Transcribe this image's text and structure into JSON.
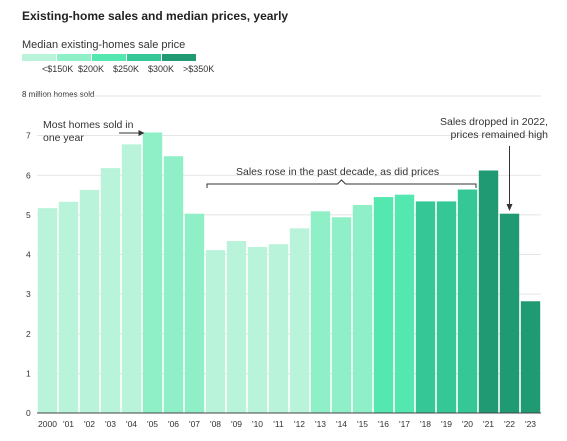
{
  "title": "Existing-home sales and median prices, yearly",
  "legend": {
    "title": "Median existing-homes sale price",
    "items": [
      {
        "label": "<$150K",
        "color": "#b9f3da"
      },
      {
        "label": "$200K",
        "color": "#8ff0c7"
      },
      {
        "label": "$250K",
        "color": "#54e8b0"
      },
      {
        "label": "$300K",
        "color": "#35c795"
      },
      {
        "label": ">$350K",
        "color": "#1f9a72"
      }
    ]
  },
  "y_unit_label": "8 million homes sold",
  "annotations": {
    "peak": "Most homes sold in one year",
    "decade": "Sales rose in the past decade, as did prices",
    "drop": "Sales dropped in 2022, prices remained high"
  },
  "chart_data": {
    "type": "bar",
    "categories": [
      "2000",
      "'01",
      "'02",
      "'03",
      "'04",
      "'05",
      "'06",
      "'07",
      "'08",
      "'09",
      "'10",
      "'11",
      "'12",
      "'13",
      "'14",
      "'15",
      "'16",
      "'17",
      "'18",
      "'19",
      "'20",
      "'21",
      "'22",
      "'23"
    ],
    "values": [
      5.17,
      5.33,
      5.63,
      6.18,
      6.78,
      7.08,
      6.48,
      5.03,
      4.11,
      4.34,
      4.19,
      4.26,
      4.66,
      5.09,
      4.94,
      5.25,
      5.45,
      5.51,
      5.34,
      5.34,
      5.64,
      6.12,
      5.03,
      2.82
    ],
    "price_bin": [
      0,
      0,
      0,
      0,
      0,
      1,
      1,
      1,
      0,
      0,
      0,
      0,
      0,
      1,
      1,
      1,
      2,
      2,
      3,
      3,
      3,
      4,
      4,
      4
    ],
    "yticks": [
      0,
      1,
      2,
      3,
      4,
      5,
      6,
      7
    ],
    "ylim": [
      0,
      8
    ],
    "grid": true
  }
}
